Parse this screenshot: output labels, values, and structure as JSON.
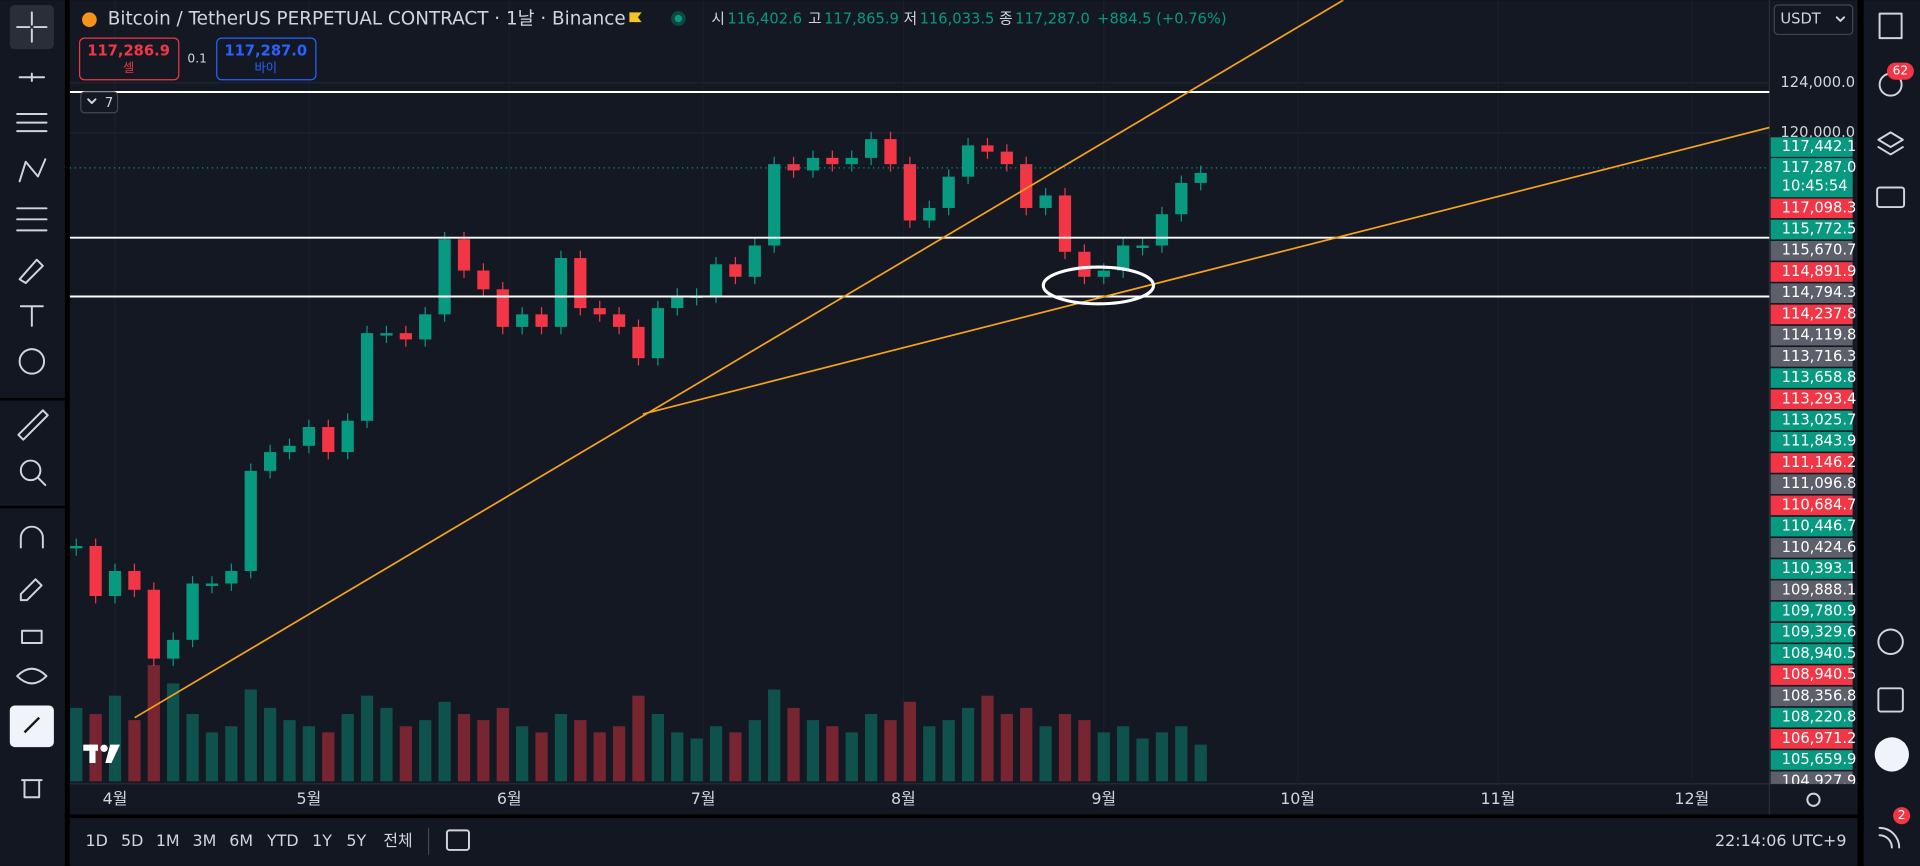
{
  "header": {
    "symbol": "Bitcoin / TetherUS PERPETUAL CONTRACT · 1날 · Binance",
    "ohlc": [
      {
        "label": "시",
        "value": "116,402.6"
      },
      {
        "label": "고",
        "value": "117,865.9"
      },
      {
        "label": "저",
        "value": "116,033.5"
      },
      {
        "label": "종",
        "value": "117,287.0"
      }
    ],
    "change": "+884.5 (+0.76%)",
    "currency": "USDT"
  },
  "order": {
    "sell_price": "117,286.9",
    "sell_label": "셀",
    "quantity": "0.1",
    "buy_price": "117,287.0",
    "buy_label": "바이"
  },
  "indicator_count": "7",
  "badges": {
    "alerts": "62",
    "notifications": "2"
  },
  "chart_data": {
    "type": "candlestick",
    "x": [
      0,
      3,
      6,
      9,
      12,
      15,
      18,
      21,
      24,
      27,
      30,
      33,
      36,
      39,
      42,
      45,
      48,
      51,
      54,
      57,
      60,
      63,
      66,
      69,
      72,
      75,
      78,
      81,
      84,
      87,
      90,
      93,
      96,
      99,
      102,
      105,
      108,
      111,
      114,
      117,
      120,
      123,
      126,
      129,
      132,
      135,
      138,
      141,
      144,
      147,
      150,
      153,
      156,
      159,
      162,
      165,
      168,
      171,
      174
    ],
    "values": [
      87000,
      83000,
      85000,
      83500,
      78000,
      79500,
      84000,
      84000,
      85000,
      93000,
      94500,
      95000,
      96500,
      94500,
      97000,
      104000,
      104000,
      103500,
      105500,
      111500,
      109000,
      107500,
      104500,
      105500,
      104500,
      110000,
      106000,
      105500,
      104500,
      102000,
      106000,
      107000,
      107000,
      109500,
      108500,
      111000,
      117500,
      117000,
      118000,
      117500,
      118000,
      119500,
      117500,
      113000,
      114000,
      116500,
      119000,
      118500,
      117500,
      114000,
      115000,
      110500,
      108500,
      109000,
      111000,
      111000,
      113500,
      116000,
      116800
    ],
    "volume": [
      60,
      55,
      70,
      50,
      95,
      80,
      55,
      40,
      45,
      75,
      60,
      50,
      45,
      40,
      55,
      70,
      60,
      45,
      50,
      65,
      55,
      50,
      60,
      45,
      40,
      55,
      50,
      40,
      45,
      70,
      55,
      40,
      35,
      45,
      40,
      50,
      75,
      60,
      50,
      45,
      40,
      55,
      50,
      65,
      45,
      50,
      60,
      70,
      55,
      60,
      45,
      55,
      50,
      40,
      45,
      35,
      40,
      45,
      30
    ],
    "vlim": [
      0,
      100
    ],
    "up_color": "#089981",
    "down_color": "#f23645",
    "xlim": [
      -1,
      262
    ],
    "xticks": [
      {
        "value": 6,
        "label": "4월"
      },
      {
        "value": 36,
        "label": "5월"
      },
      {
        "value": 67,
        "label": "6월"
      },
      {
        "value": 97,
        "label": "7월"
      },
      {
        "value": 128,
        "label": "8월"
      },
      {
        "value": 159,
        "label": "9월"
      },
      {
        "value": 189,
        "label": "10월"
      },
      {
        "value": 220,
        "label": "11월"
      },
      {
        "value": 250,
        "label": "12월"
      }
    ],
    "ylim": [
      68000,
      130600
    ],
    "yticks": [
      {
        "value": 124000,
        "label": "124,000.0"
      },
      {
        "value": 120000,
        "label": "120,000.0"
      }
    ],
    "grid": true
  },
  "price_labels": [
    {
      "text": "117,442.1",
      "color": "#089981"
    },
    {
      "text": "117,287.0",
      "color": "#089981"
    },
    {
      "text": "117,098.3",
      "color": "#f23645"
    },
    {
      "text": "115,772.5",
      "color": "#089981"
    },
    {
      "text": "115,670.7",
      "color": "#5d606b"
    },
    {
      "text": "114,891.9",
      "color": "#f23645"
    },
    {
      "text": "114,794.3",
      "color": "#5d606b"
    },
    {
      "text": "114,237.8",
      "color": "#f23645"
    },
    {
      "text": "114,119.8",
      "color": "#5d606b"
    },
    {
      "text": "113,716.3",
      "color": "#5d606b"
    },
    {
      "text": "113,658.8",
      "color": "#089981"
    },
    {
      "text": "113,293.4",
      "color": "#f23645"
    },
    {
      "text": "113,025.7",
      "color": "#089981"
    },
    {
      "text": "111,843.9",
      "color": "#089981"
    },
    {
      "text": "111,146.2",
      "color": "#f23645"
    },
    {
      "text": "111,096.8",
      "color": "#5d606b"
    },
    {
      "text": "110,684.7",
      "color": "#f23645"
    },
    {
      "text": "110,446.7",
      "color": "#089981"
    },
    {
      "text": "110,424.6",
      "color": "#5d606b"
    },
    {
      "text": "110,393.1",
      "color": "#089981"
    },
    {
      "text": "109,888.1",
      "color": "#5d606b"
    },
    {
      "text": "109,780.9",
      "color": "#089981"
    },
    {
      "text": "109,329.6",
      "color": "#089981"
    },
    {
      "text": "108,940.5",
      "color": "#089981"
    },
    {
      "text": "108,940.5",
      "color": "#f23645"
    },
    {
      "text": "108,356.8",
      "color": "#5d606b"
    },
    {
      "text": "108,220.8",
      "color": "#089981"
    },
    {
      "text": "106,971.2",
      "color": "#f23645"
    },
    {
      "text": "105,659.9",
      "color": "#089981"
    },
    {
      "text": "104,927.9",
      "color": "#5d606b"
    }
  ],
  "countdown": "10:45:54",
  "ranges": [
    "1D",
    "5D",
    "1M",
    "3M",
    "6M",
    "YTD",
    "1Y",
    "5Y",
    "전체"
  ],
  "clock": "22:14:06 UTC+9"
}
